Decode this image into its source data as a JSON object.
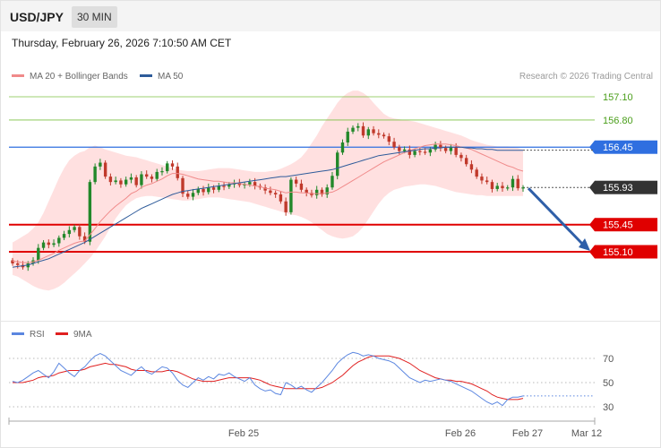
{
  "header": {
    "symbol": "USD/JPY",
    "timeframe": "30 MIN"
  },
  "timestamp": "Thursday, February 26, 2026 7:10:50 AM CET",
  "legend": {
    "ma20_label": "MA 20 + Bollinger Bands",
    "ma50_label": "MA 50",
    "ma20_color": "#f08a8a",
    "ma50_color": "#2e5b9a"
  },
  "credit": "Research © 2026 Trading Central",
  "rsi_legend": {
    "rsi_label": "RSI",
    "ma_label": "9MA",
    "rsi_color": "#5b86e0",
    "ma_color": "#e02020"
  },
  "colors": {
    "up": "#22882a",
    "down": "#c0392b",
    "support": "#e00000",
    "resistance": "#2f6fe0",
    "target": "#2f5fa8",
    "green_level": "#7bc043",
    "band": "#ffd6d6"
  },
  "chart_data": [
    {
      "type": "candlestick",
      "title": "",
      "yrange": [
        155.0,
        157.3
      ],
      "x_ticks": [
        "Feb 25",
        "Feb 26",
        "Feb 27",
        "Mar 12"
      ],
      "levels": [
        {
          "value": 157.1,
          "label": "157.10",
          "kind": "green"
        },
        {
          "value": 156.8,
          "label": "156.80",
          "kind": "green"
        },
        {
          "value": 156.45,
          "label": "156.45",
          "kind": "resistance"
        },
        {
          "value": 155.93,
          "label": "155.93",
          "kind": "last"
        },
        {
          "value": 155.45,
          "label": "155.45",
          "kind": "support"
        },
        {
          "value": 155.1,
          "label": "155.10",
          "kind": "support"
        }
      ],
      "target_arrow": {
        "from": 155.93,
        "to": 155.1
      },
      "close": [
        154.95,
        154.93,
        154.9,
        154.95,
        154.99,
        155.15,
        155.22,
        155.19,
        155.21,
        155.28,
        155.33,
        155.38,
        155.42,
        155.3,
        155.23,
        156.0,
        156.2,
        156.25,
        156.07,
        156.0,
        156.02,
        155.97,
        156.03,
        156.06,
        155.96,
        156.1,
        156.07,
        156.04,
        156.13,
        156.14,
        156.24,
        156.2,
        156.05,
        155.85,
        155.81,
        155.86,
        155.91,
        155.87,
        155.93,
        155.9,
        155.95,
        155.94,
        155.97,
        155.99,
        155.96,
        155.97,
        156.0,
        155.95,
        155.93,
        155.89,
        155.86,
        155.84,
        155.75,
        155.61,
        156.03,
        155.98,
        155.9,
        155.86,
        155.83,
        155.9,
        155.84,
        155.93,
        156.08,
        156.38,
        156.51,
        156.65,
        156.7,
        156.72,
        156.6,
        156.68,
        156.63,
        156.61,
        156.59,
        156.52,
        156.45,
        156.4,
        156.42,
        156.35,
        156.4,
        156.39,
        156.38,
        156.42,
        156.48,
        156.44,
        156.4,
        156.45,
        156.35,
        156.31,
        156.23,
        156.16,
        156.07,
        156.02,
        156.0,
        155.91,
        155.95,
        155.92,
        155.93,
        156.04,
        155.92,
        155.93
      ],
      "ma20": [
        154.98,
        154.97,
        154.96,
        154.96,
        154.97,
        154.99,
        155.02,
        155.05,
        155.08,
        155.12,
        155.15,
        155.18,
        155.21,
        155.23,
        155.24,
        155.32,
        155.4,
        155.49,
        155.56,
        155.63,
        155.69,
        155.74,
        155.79,
        155.85,
        155.88,
        155.93,
        155.96,
        155.98,
        156.01,
        156.04,
        156.08,
        156.11,
        156.11,
        156.1,
        156.08,
        156.06,
        156.04,
        156.03,
        156.02,
        156.01,
        156.01,
        156.0,
        155.99,
        155.99,
        155.98,
        155.97,
        155.96,
        155.95,
        155.94,
        155.92,
        155.91,
        155.9,
        155.88,
        155.86,
        155.87,
        155.87,
        155.86,
        155.86,
        155.85,
        155.85,
        155.85,
        155.86,
        155.87,
        155.9,
        155.94,
        155.98,
        156.02,
        156.06,
        156.1,
        156.14,
        156.18,
        156.22,
        156.26,
        156.29,
        156.32,
        156.35,
        156.38,
        156.4,
        156.43,
        156.45,
        156.47,
        156.48,
        156.49,
        156.49,
        156.49,
        156.48,
        156.47,
        156.45,
        156.44,
        156.42,
        156.39,
        156.36,
        156.33,
        156.3,
        156.27,
        156.24,
        156.21,
        156.19,
        156.16,
        156.14
      ],
      "bb_upper": [
        155.22,
        155.26,
        155.3,
        155.34,
        155.4,
        155.48,
        155.6,
        155.75,
        155.9,
        156.05,
        156.18,
        156.28,
        156.34,
        156.38,
        156.4,
        156.45,
        156.47,
        156.45,
        156.42,
        156.4,
        156.38,
        156.36,
        156.34,
        156.33,
        156.32,
        156.3,
        156.28,
        156.26,
        156.24,
        156.22,
        156.2,
        156.18,
        156.16,
        156.15,
        156.14,
        156.14,
        156.14,
        156.15,
        156.16,
        156.17,
        156.18,
        156.18,
        156.18,
        156.17,
        156.16,
        156.15,
        156.14,
        156.13,
        156.13,
        156.13,
        156.14,
        156.15,
        156.17,
        156.2,
        156.23,
        156.27,
        156.32,
        156.4,
        156.5,
        156.6,
        156.72,
        156.82,
        156.92,
        157.02,
        157.1,
        157.15,
        157.18,
        157.18,
        157.15,
        157.1,
        157.02,
        156.95,
        156.88,
        156.84,
        156.82,
        156.81,
        156.8,
        156.79,
        156.78,
        156.76,
        156.74,
        156.72,
        156.7,
        156.68,
        156.66,
        156.64,
        156.62,
        156.6,
        156.57,
        156.54,
        156.52,
        156.5,
        156.48,
        156.47,
        156.46,
        156.46,
        156.46,
        156.45,
        156.44,
        156.42
      ],
      "bb_lower": [
        154.8,
        154.78,
        154.74,
        154.7,
        154.66,
        154.63,
        154.61,
        154.6,
        154.62,
        154.65,
        154.7,
        154.76,
        154.82,
        154.88,
        154.95,
        155.02,
        155.1,
        155.2,
        155.3,
        155.42,
        155.53,
        155.62,
        155.7,
        155.75,
        155.79,
        155.81,
        155.82,
        155.82,
        155.81,
        155.8,
        155.79,
        155.78,
        155.77,
        155.76,
        155.76,
        155.77,
        155.78,
        155.79,
        155.8,
        155.8,
        155.8,
        155.79,
        155.78,
        155.77,
        155.76,
        155.75,
        155.74,
        155.72,
        155.7,
        155.68,
        155.66,
        155.64,
        155.62,
        155.6,
        155.58,
        155.57,
        155.55,
        155.52,
        155.48,
        155.43,
        155.38,
        155.33,
        155.3,
        155.28,
        155.27,
        155.28,
        155.3,
        155.35,
        155.42,
        155.52,
        155.62,
        155.72,
        155.8,
        155.86,
        155.9,
        155.92,
        155.94,
        155.95,
        155.96,
        155.97,
        155.97,
        155.96,
        155.95,
        155.93,
        155.91,
        155.89,
        155.87,
        155.86,
        155.85,
        155.84,
        155.83,
        155.83,
        155.82,
        155.82,
        155.82,
        155.82,
        155.82,
        155.82,
        155.82,
        155.82
      ],
      "ma50": [
        154.9,
        154.91,
        154.92,
        154.93,
        154.95,
        154.97,
        154.99,
        155.01,
        155.04,
        155.07,
        155.1,
        155.13,
        155.16,
        155.19,
        155.22,
        155.26,
        155.3,
        155.34,
        155.38,
        155.42,
        155.46,
        155.5,
        155.54,
        155.58,
        155.62,
        155.66,
        155.69,
        155.72,
        155.75,
        155.78,
        155.81,
        155.84,
        155.86,
        155.88,
        155.89,
        155.9,
        155.91,
        155.92,
        155.93,
        155.94,
        155.95,
        155.96,
        155.97,
        155.98,
        155.99,
        156.0,
        156.01,
        156.02,
        156.03,
        156.04,
        156.05,
        156.06,
        156.07,
        156.07,
        156.08,
        156.09,
        156.1,
        156.11,
        156.12,
        156.13,
        156.14,
        156.15,
        156.16,
        156.18,
        156.2,
        156.22,
        156.24,
        156.26,
        156.28,
        156.3,
        156.32,
        156.34,
        156.35,
        156.36,
        156.37,
        156.38,
        156.39,
        156.4,
        156.41,
        156.42,
        156.43,
        156.43,
        156.44,
        156.44,
        156.45,
        156.45,
        156.45,
        156.45,
        156.44,
        156.44,
        156.43,
        156.43,
        156.42,
        156.42,
        156.41,
        156.41,
        156.41,
        156.41,
        156.41,
        156.41
      ]
    },
    {
      "type": "line",
      "title": "",
      "yrange": [
        20,
        80
      ],
      "y_ticks": [
        70,
        50,
        30
      ],
      "series": [
        {
          "name": "RSI",
          "values": [
            51,
            50,
            52,
            55,
            58,
            60,
            57,
            54,
            59,
            66,
            62,
            58,
            55,
            60,
            63,
            68,
            72,
            74,
            72,
            68,
            64,
            60,
            58,
            56,
            60,
            63,
            59,
            57,
            60,
            63,
            62,
            58,
            52,
            48,
            46,
            50,
            54,
            52,
            55,
            53,
            57,
            56,
            58,
            55,
            53,
            51,
            54,
            48,
            45,
            43,
            44,
            41,
            40,
            50,
            48,
            45,
            47,
            44,
            42,
            46,
            50,
            55,
            60,
            66,
            70,
            73,
            75,
            74,
            72,
            73,
            72,
            70,
            69,
            68,
            66,
            62,
            58,
            54,
            52,
            50,
            52,
            51,
            52,
            53,
            52,
            51,
            49,
            47,
            45,
            43,
            40,
            37,
            34,
            32,
            34,
            31,
            36,
            38,
            38,
            39
          ]
        },
        {
          "name": "9MA",
          "values": [
            50,
            50,
            50,
            51,
            52,
            54,
            55,
            55,
            56,
            58,
            59,
            60,
            60,
            60,
            61,
            63,
            64,
            65,
            66,
            65,
            65,
            64,
            63,
            61,
            60,
            60,
            60,
            59,
            59,
            59,
            60,
            60,
            59,
            57,
            55,
            53,
            52,
            51,
            51,
            51,
            52,
            53,
            54,
            54,
            54,
            54,
            54,
            53,
            52,
            50,
            48,
            47,
            46,
            45,
            45,
            45,
            45,
            45,
            45,
            45,
            46,
            48,
            50,
            53,
            56,
            60,
            64,
            67,
            69,
            71,
            72,
            72,
            72,
            72,
            71,
            70,
            68,
            66,
            63,
            60,
            58,
            56,
            54,
            53,
            52,
            52,
            51,
            51,
            50,
            49,
            47,
            45,
            43,
            40,
            38,
            37,
            36,
            36,
            36,
            37
          ]
        }
      ]
    }
  ]
}
